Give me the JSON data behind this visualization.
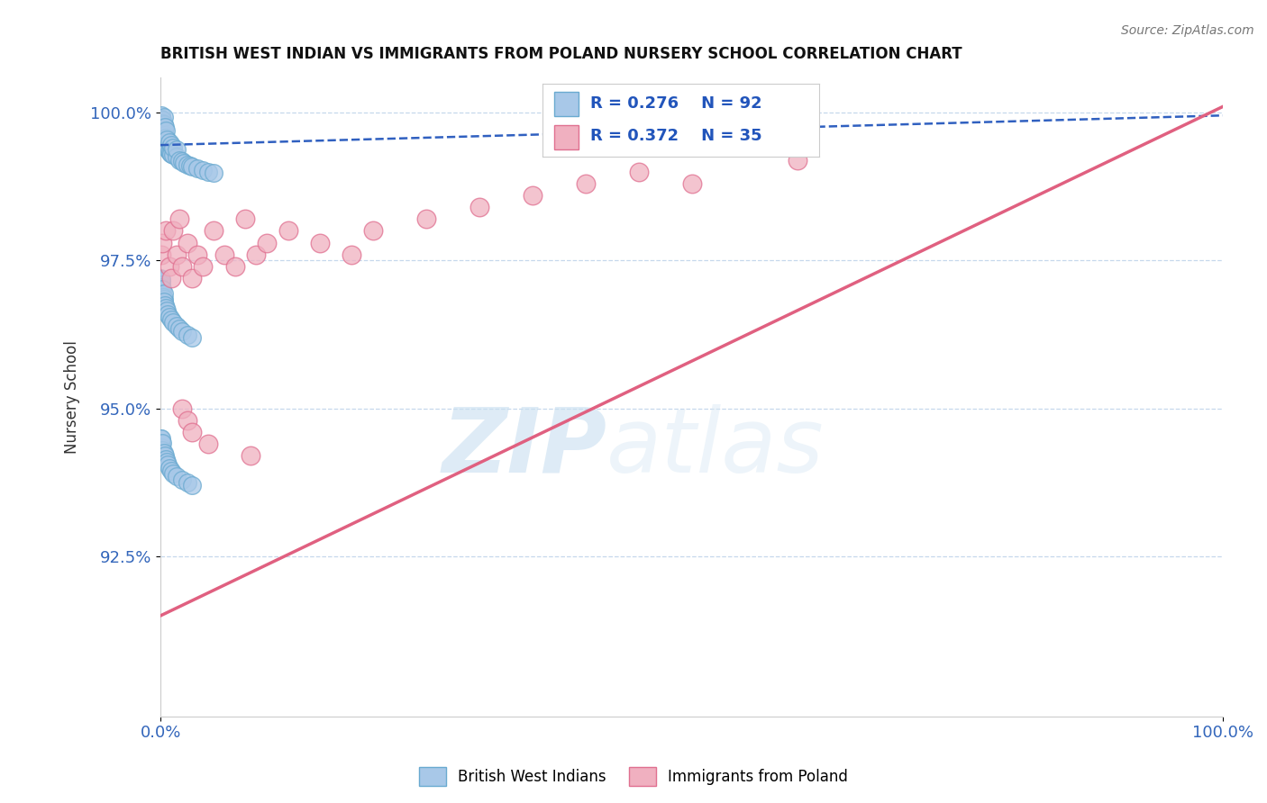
{
  "title": "BRITISH WEST INDIAN VS IMMIGRANTS FROM POLAND NURSERY SCHOOL CORRELATION CHART",
  "source": "Source: ZipAtlas.com",
  "xlabel": "",
  "ylabel": "Nursery School",
  "xlim": [
    0.0,
    1.0
  ],
  "ylim": [
    0.898,
    1.006
  ],
  "x_ticks": [
    0.0,
    1.0
  ],
  "x_tick_labels": [
    "0.0%",
    "100.0%"
  ],
  "y_ticks": [
    0.925,
    0.95,
    0.975,
    1.0
  ],
  "y_tick_labels": [
    "92.5%",
    "95.0%",
    "97.5%",
    "100.0%"
  ],
  "legend_r1": "R = 0.276",
  "legend_n1": "N = 92",
  "legend_r2": "R = 0.372",
  "legend_n2": "N = 35",
  "legend_label1": "British West Indians",
  "legend_label2": "Immigrants from Poland",
  "blue_color": "#a8c8e8",
  "blue_edge": "#6aaad0",
  "pink_color": "#f0b0c0",
  "pink_edge": "#e07090",
  "blue_line_color": "#3060c0",
  "pink_line_color": "#e06080",
  "watermark_zip": "ZIP",
  "watermark_atlas": "atlas",
  "blue_trend_x0": 0.0,
  "blue_trend_x1": 1.0,
  "blue_trend_y0": 0.9945,
  "blue_trend_y1": 0.9995,
  "pink_trend_x0": 0.0,
  "pink_trend_x1": 1.0,
  "pink_trend_y0": 0.915,
  "pink_trend_y1": 1.001,
  "blue_x": [
    0.0005,
    0.0008,
    0.001,
    0.001,
    0.0012,
    0.0015,
    0.0015,
    0.0018,
    0.002,
    0.002,
    0.002,
    0.0022,
    0.0025,
    0.0025,
    0.003,
    0.003,
    0.003,
    0.003,
    0.0035,
    0.004,
    0.004,
    0.004,
    0.0045,
    0.005,
    0.005,
    0.005,
    0.006,
    0.006,
    0.007,
    0.008,
    0.008,
    0.009,
    0.01,
    0.01,
    0.012,
    0.012,
    0.015,
    0.015,
    0.018,
    0.02,
    0.022,
    0.025,
    0.028,
    0.03,
    0.035,
    0.04,
    0.045,
    0.05,
    0.0003,
    0.0005,
    0.0007,
    0.001,
    0.001,
    0.0012,
    0.0015,
    0.002,
    0.002,
    0.0025,
    0.003,
    0.003,
    0.0035,
    0.004,
    0.005,
    0.006,
    0.007,
    0.008,
    0.01,
    0.012,
    0.015,
    0.018,
    0.02,
    0.025,
    0.03,
    0.0003,
    0.0005,
    0.001,
    0.001,
    0.002,
    0.002,
    0.003,
    0.004,
    0.005,
    0.006,
    0.007,
    0.008,
    0.01,
    0.012,
    0.015,
    0.02,
    0.025,
    0.03
  ],
  "blue_y": [
    0.9995,
    0.999,
    0.9985,
    0.998,
    0.9975,
    0.9975,
    0.9988,
    0.997,
    0.9968,
    0.9982,
    0.9978,
    0.9965,
    0.9972,
    0.996,
    0.9958,
    0.997,
    0.998,
    0.9992,
    0.9955,
    0.995,
    0.9962,
    0.9975,
    0.9948,
    0.9945,
    0.9958,
    0.997,
    0.994,
    0.9955,
    0.9938,
    0.9935,
    0.995,
    0.9932,
    0.993,
    0.9945,
    0.9928,
    0.994,
    0.9925,
    0.9938,
    0.992,
    0.9918,
    0.9915,
    0.9912,
    0.991,
    0.9908,
    0.9905,
    0.9902,
    0.99,
    0.9898,
    0.972,
    0.9715,
    0.971,
    0.9705,
    0.9718,
    0.97,
    0.9695,
    0.969,
    0.9702,
    0.9688,
    0.9685,
    0.9695,
    0.968,
    0.9675,
    0.967,
    0.9665,
    0.966,
    0.9655,
    0.965,
    0.9645,
    0.964,
    0.9635,
    0.963,
    0.9625,
    0.962,
    0.945,
    0.944,
    0.9435,
    0.945,
    0.943,
    0.9442,
    0.9425,
    0.942,
    0.9415,
    0.941,
    0.9405,
    0.94,
    0.9395,
    0.939,
    0.9385,
    0.938,
    0.9375,
    0.937
  ],
  "pink_x": [
    0.001,
    0.002,
    0.005,
    0.008,
    0.01,
    0.012,
    0.015,
    0.018,
    0.02,
    0.025,
    0.03,
    0.035,
    0.04,
    0.05,
    0.06,
    0.07,
    0.08,
    0.09,
    0.1,
    0.12,
    0.15,
    0.18,
    0.2,
    0.25,
    0.3,
    0.35,
    0.4,
    0.45,
    0.5,
    0.6,
    0.02,
    0.025,
    0.03,
    0.045,
    0.085
  ],
  "pink_y": [
    0.976,
    0.978,
    0.98,
    0.974,
    0.972,
    0.98,
    0.976,
    0.982,
    0.974,
    0.978,
    0.972,
    0.976,
    0.974,
    0.98,
    0.976,
    0.974,
    0.982,
    0.976,
    0.978,
    0.98,
    0.978,
    0.976,
    0.98,
    0.982,
    0.984,
    0.986,
    0.988,
    0.99,
    0.988,
    0.992,
    0.95,
    0.948,
    0.946,
    0.944,
    0.942
  ]
}
